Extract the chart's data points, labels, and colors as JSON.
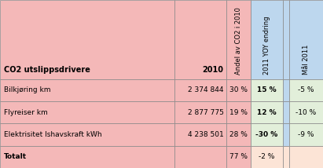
{
  "title_col1": "CO2 utslippsdrivere",
  "title_col2": "2010",
  "title_col3": "Andel av CO2 i 2010",
  "title_col4": "2011 YOY endring",
  "title_col5": "Mål 2011",
  "rows": [
    {
      "label": "Bilkjøring km",
      "val2010": "2 374 844",
      "andel": "30 %",
      "yoy": "15 %",
      "mal": "-5 %"
    },
    {
      "label": "Flyreiser km",
      "val2010": "2 877 775",
      "andel": "19 %",
      "yoy": "12 %",
      "mal": "-10 %"
    },
    {
      "label": "Elektrisitet Ishavskraft kWh",
      "val2010": "4 238 501",
      "andel": "28 %",
      "yoy": "-30 %",
      "mal": "-9 %"
    },
    {
      "label": "Totalt",
      "val2010": "",
      "andel": "77 %",
      "yoy": "-2 %",
      "mal": ""
    }
  ],
  "c_pink": "#F4B8B8",
  "c_blue": "#BDD7EE",
  "c_lgreen": "#E2EFDA",
  "c_lpink": "#FCE4D6",
  "fig_w": 4.11,
  "fig_h": 2.14,
  "dpi": 100
}
